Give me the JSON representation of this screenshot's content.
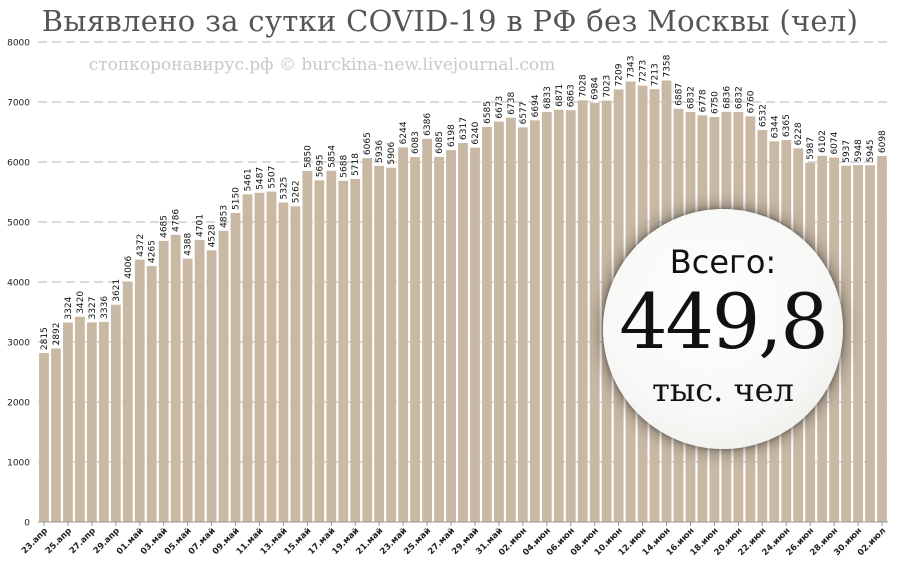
{
  "chart_data": {
    "type": "bar",
    "title": "Выявлено за сутки COVID-19 в РФ без Москвы (чел)",
    "watermark": "стопкоронавирус.рф © burckina-new.livejournal.com",
    "ylim": [
      0,
      8000
    ],
    "yticks": [
      "0",
      "1000",
      "2000",
      "3000",
      "4000",
      "5000",
      "6000",
      "7000",
      "8000"
    ],
    "grid": true,
    "bar_color": "#c9b8a4",
    "xtick_labels": [
      "23.апр",
      "25.апр",
      "27.апр",
      "29.апр",
      "01.май",
      "03.май",
      "05.май",
      "07.май",
      "09.май",
      "11.май",
      "13.май",
      "15.май",
      "17.май",
      "19.май",
      "21.май",
      "23.май",
      "25.май",
      "27.май",
      "29.май",
      "31.май",
      "02.июн",
      "04.июн",
      "06.июн",
      "08.июн",
      "10.июн",
      "12.июн",
      "14.июн",
      "16.июн",
      "18.июн",
      "20.июн",
      "22.июн",
      "24.июн",
      "26.июн",
      "28.июн",
      "30.июн",
      "02.июл"
    ],
    "values": [
      2815,
      2892,
      3324,
      3420,
      3327,
      3336,
      3621,
      4006,
      4372,
      4265,
      4685,
      4786,
      4388,
      4701,
      4528,
      4853,
      5150,
      5461,
      5487,
      5507,
      5325,
      5262,
      5850,
      5695,
      5854,
      5688,
      5718,
      6065,
      5936,
      5906,
      6244,
      6083,
      6386,
      6085,
      6198,
      6317,
      6240,
      6585,
      6673,
      6738,
      6577,
      6694,
      6833,
      6871,
      6863,
      7028,
      6984,
      7023,
      7209,
      7343,
      7273,
      7213,
      7358,
      6887,
      6832,
      6778,
      6750,
      6836,
      6832,
      6760,
      6532,
      6344,
      6365,
      6228,
      5987,
      6102,
      6074,
      5937,
      5948,
      5945,
      6098
    ]
  },
  "total_badge": {
    "label": "Всего:",
    "value": "449,8",
    "unit": "тыс. чел"
  }
}
